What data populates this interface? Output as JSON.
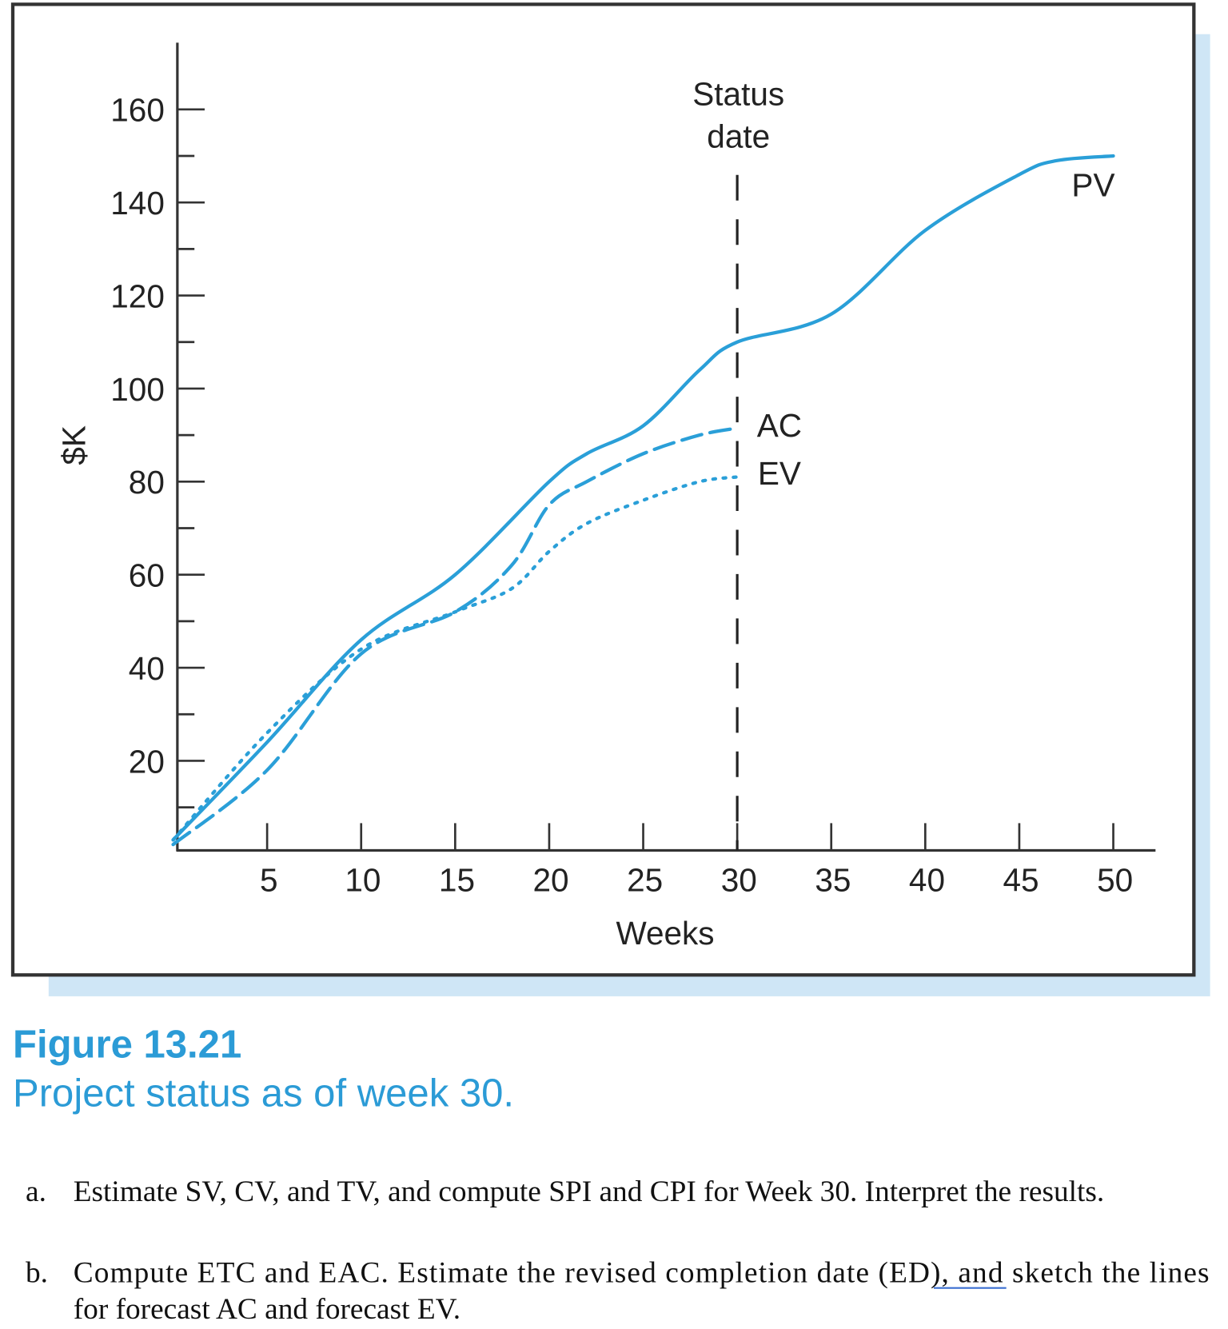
{
  "chart_data": {
    "type": "line",
    "xlabel": "Weeks",
    "ylabel": "$K",
    "xlim": [
      0,
      52
    ],
    "ylim": [
      0,
      170
    ],
    "xticks": [
      5,
      10,
      15,
      20,
      25,
      30,
      35,
      40,
      45,
      50
    ],
    "yticks": [
      20,
      40,
      60,
      80,
      100,
      120,
      140,
      160
    ],
    "grid": false,
    "line_color": "#2a9fd8",
    "status_date": {
      "x": 30,
      "label_line1": "Status",
      "label_line2": "date"
    },
    "series": [
      {
        "name": "PV",
        "style": "solid",
        "x": [
          0,
          5,
          10,
          15,
          20,
          22,
          25,
          28,
          30,
          35,
          40,
          45,
          47,
          50
        ],
        "y": [
          3,
          24,
          46,
          60,
          80,
          86,
          92,
          104,
          110,
          116,
          134,
          146,
          149,
          150
        ]
      },
      {
        "name": "AC",
        "style": "dashed",
        "x": [
          0,
          5,
          10,
          15,
          18,
          20,
          22,
          25,
          28,
          30
        ],
        "y": [
          2,
          18,
          43,
          52,
          62,
          75,
          80,
          86,
          90,
          91.5
        ]
      },
      {
        "name": "EV",
        "style": "dotted",
        "x": [
          0,
          5,
          10,
          15,
          18,
          20,
          22,
          25,
          28,
          30
        ],
        "y": [
          3,
          26,
          44,
          52,
          57,
          65,
          71,
          76,
          80,
          81
        ]
      }
    ]
  },
  "caption": {
    "figure": "Figure 13.21",
    "text": "Project status as of week 30."
  },
  "questions": [
    {
      "label": "a.",
      "lines": [
        "Estimate SV, CV, and TV, and compute SPI and CPI for Week 30. Interpret the results."
      ]
    },
    {
      "label": "b.",
      "lines": [
        "Compute ETC and EAC. Estimate the revised completion date (ED), and sketch the lines",
        "for forecast AC and forecast EV."
      ]
    }
  ]
}
